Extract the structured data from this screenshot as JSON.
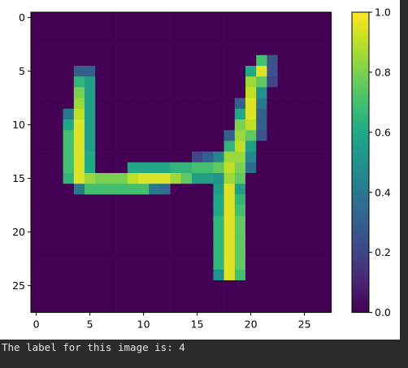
{
  "chart_data": {
    "type": "heatmap",
    "title": "",
    "xlabel": "",
    "ylabel": "",
    "grid": false,
    "rows": 28,
    "cols": 28,
    "xlim": [
      -0.5,
      27.5
    ],
    "ylim": [
      27.5,
      -0.5
    ],
    "x_ticks": [
      0,
      5,
      10,
      15,
      20,
      25
    ],
    "y_ticks": [
      0,
      5,
      10,
      15,
      20,
      25
    ],
    "colormap": "viridis",
    "colorbar": {
      "range": [
        0.0,
        1.0
      ],
      "ticks": [
        "0.0",
        "0.2",
        "0.4",
        "0.6",
        "0.8",
        "1.0"
      ]
    },
    "background_value": 0.0,
    "nonzero_pixels": [
      [
        4,
        21,
        0.7
      ],
      [
        4,
        22,
        0.25
      ],
      [
        5,
        4,
        0.3
      ],
      [
        5,
        5,
        0.3
      ],
      [
        5,
        20,
        0.6
      ],
      [
        5,
        21,
        0.95
      ],
      [
        5,
        22,
        0.25
      ],
      [
        6,
        4,
        0.65
      ],
      [
        6,
        5,
        0.55
      ],
      [
        6,
        20,
        0.85
      ],
      [
        6,
        21,
        0.75
      ],
      [
        6,
        22,
        0.2
      ],
      [
        7,
        4,
        0.8
      ],
      [
        7,
        5,
        0.55
      ],
      [
        7,
        20,
        0.9
      ],
      [
        7,
        21,
        0.5
      ],
      [
        8,
        4,
        0.85
      ],
      [
        8,
        5,
        0.55
      ],
      [
        8,
        19,
        0.3
      ],
      [
        8,
        20,
        0.95
      ],
      [
        8,
        21,
        0.4
      ],
      [
        9,
        3,
        0.4
      ],
      [
        9,
        4,
        0.9
      ],
      [
        9,
        5,
        0.55
      ],
      [
        9,
        19,
        0.6
      ],
      [
        9,
        20,
        0.95
      ],
      [
        9,
        21,
        0.3
      ],
      [
        10,
        3,
        0.6
      ],
      [
        10,
        4,
        0.95
      ],
      [
        10,
        5,
        0.55
      ],
      [
        10,
        19,
        0.8
      ],
      [
        10,
        20,
        0.9
      ],
      [
        10,
        21,
        0.3
      ],
      [
        11,
        3,
        0.7
      ],
      [
        11,
        4,
        0.95
      ],
      [
        11,
        5,
        0.55
      ],
      [
        11,
        18,
        0.3
      ],
      [
        11,
        19,
        0.85
      ],
      [
        11,
        20,
        0.75
      ],
      [
        11,
        21,
        0.25
      ],
      [
        12,
        3,
        0.7
      ],
      [
        12,
        4,
        0.95
      ],
      [
        12,
        5,
        0.55
      ],
      [
        12,
        18,
        0.65
      ],
      [
        12,
        19,
        0.9
      ],
      [
        12,
        20,
        0.55
      ],
      [
        13,
        3,
        0.7
      ],
      [
        13,
        4,
        0.95
      ],
      [
        13,
        5,
        0.6
      ],
      [
        13,
        15,
        0.2
      ],
      [
        13,
        16,
        0.3
      ],
      [
        13,
        17,
        0.45
      ],
      [
        13,
        18,
        0.85
      ],
      [
        13,
        19,
        0.85
      ],
      [
        13,
        20,
        0.45
      ],
      [
        14,
        3,
        0.7
      ],
      [
        14,
        4,
        0.95
      ],
      [
        14,
        5,
        0.6
      ],
      [
        14,
        9,
        0.6
      ],
      [
        14,
        10,
        0.6
      ],
      [
        14,
        11,
        0.6
      ],
      [
        14,
        12,
        0.6
      ],
      [
        14,
        13,
        0.65
      ],
      [
        14,
        14,
        0.65
      ],
      [
        14,
        15,
        0.7
      ],
      [
        14,
        16,
        0.7
      ],
      [
        14,
        17,
        0.75
      ],
      [
        14,
        18,
        0.9
      ],
      [
        14,
        19,
        0.8
      ],
      [
        14,
        20,
        0.35
      ],
      [
        15,
        3,
        0.65
      ],
      [
        15,
        4,
        0.95
      ],
      [
        15,
        5,
        0.85
      ],
      [
        15,
        6,
        0.8
      ],
      [
        15,
        7,
        0.8
      ],
      [
        15,
        8,
        0.8
      ],
      [
        15,
        9,
        0.9
      ],
      [
        15,
        10,
        0.95
      ],
      [
        15,
        11,
        0.95
      ],
      [
        15,
        12,
        0.95
      ],
      [
        15,
        13,
        0.85
      ],
      [
        15,
        14,
        0.75
      ],
      [
        15,
        15,
        0.55
      ],
      [
        15,
        16,
        0.55
      ],
      [
        15,
        17,
        0.5
      ],
      [
        15,
        18,
        0.85
      ],
      [
        15,
        19,
        0.75
      ],
      [
        16,
        4,
        0.4
      ],
      [
        16,
        5,
        0.7
      ],
      [
        16,
        6,
        0.7
      ],
      [
        16,
        7,
        0.7
      ],
      [
        16,
        8,
        0.7
      ],
      [
        16,
        9,
        0.7
      ],
      [
        16,
        10,
        0.7
      ],
      [
        16,
        11,
        0.4
      ],
      [
        16,
        12,
        0.35
      ],
      [
        16,
        17,
        0.55
      ],
      [
        16,
        18,
        0.95
      ],
      [
        16,
        19,
        0.55
      ],
      [
        17,
        17,
        0.6
      ],
      [
        17,
        18,
        0.95
      ],
      [
        17,
        19,
        0.65
      ],
      [
        18,
        17,
        0.6
      ],
      [
        18,
        18,
        0.95
      ],
      [
        18,
        19,
        0.7
      ],
      [
        19,
        17,
        0.65
      ],
      [
        19,
        18,
        0.95
      ],
      [
        19,
        19,
        0.75
      ],
      [
        20,
        17,
        0.65
      ],
      [
        20,
        18,
        0.95
      ],
      [
        20,
        19,
        0.75
      ],
      [
        21,
        17,
        0.65
      ],
      [
        21,
        18,
        0.95
      ],
      [
        21,
        19,
        0.75
      ],
      [
        22,
        17,
        0.65
      ],
      [
        22,
        18,
        0.95
      ],
      [
        22,
        19,
        0.75
      ],
      [
        23,
        17,
        0.65
      ],
      [
        23,
        18,
        0.95
      ],
      [
        23,
        19,
        0.75
      ],
      [
        24,
        17,
        0.5
      ],
      [
        24,
        18,
        0.95
      ],
      [
        24,
        19,
        0.7
      ]
    ]
  },
  "output": {
    "text": "The label for this image is: 4"
  }
}
